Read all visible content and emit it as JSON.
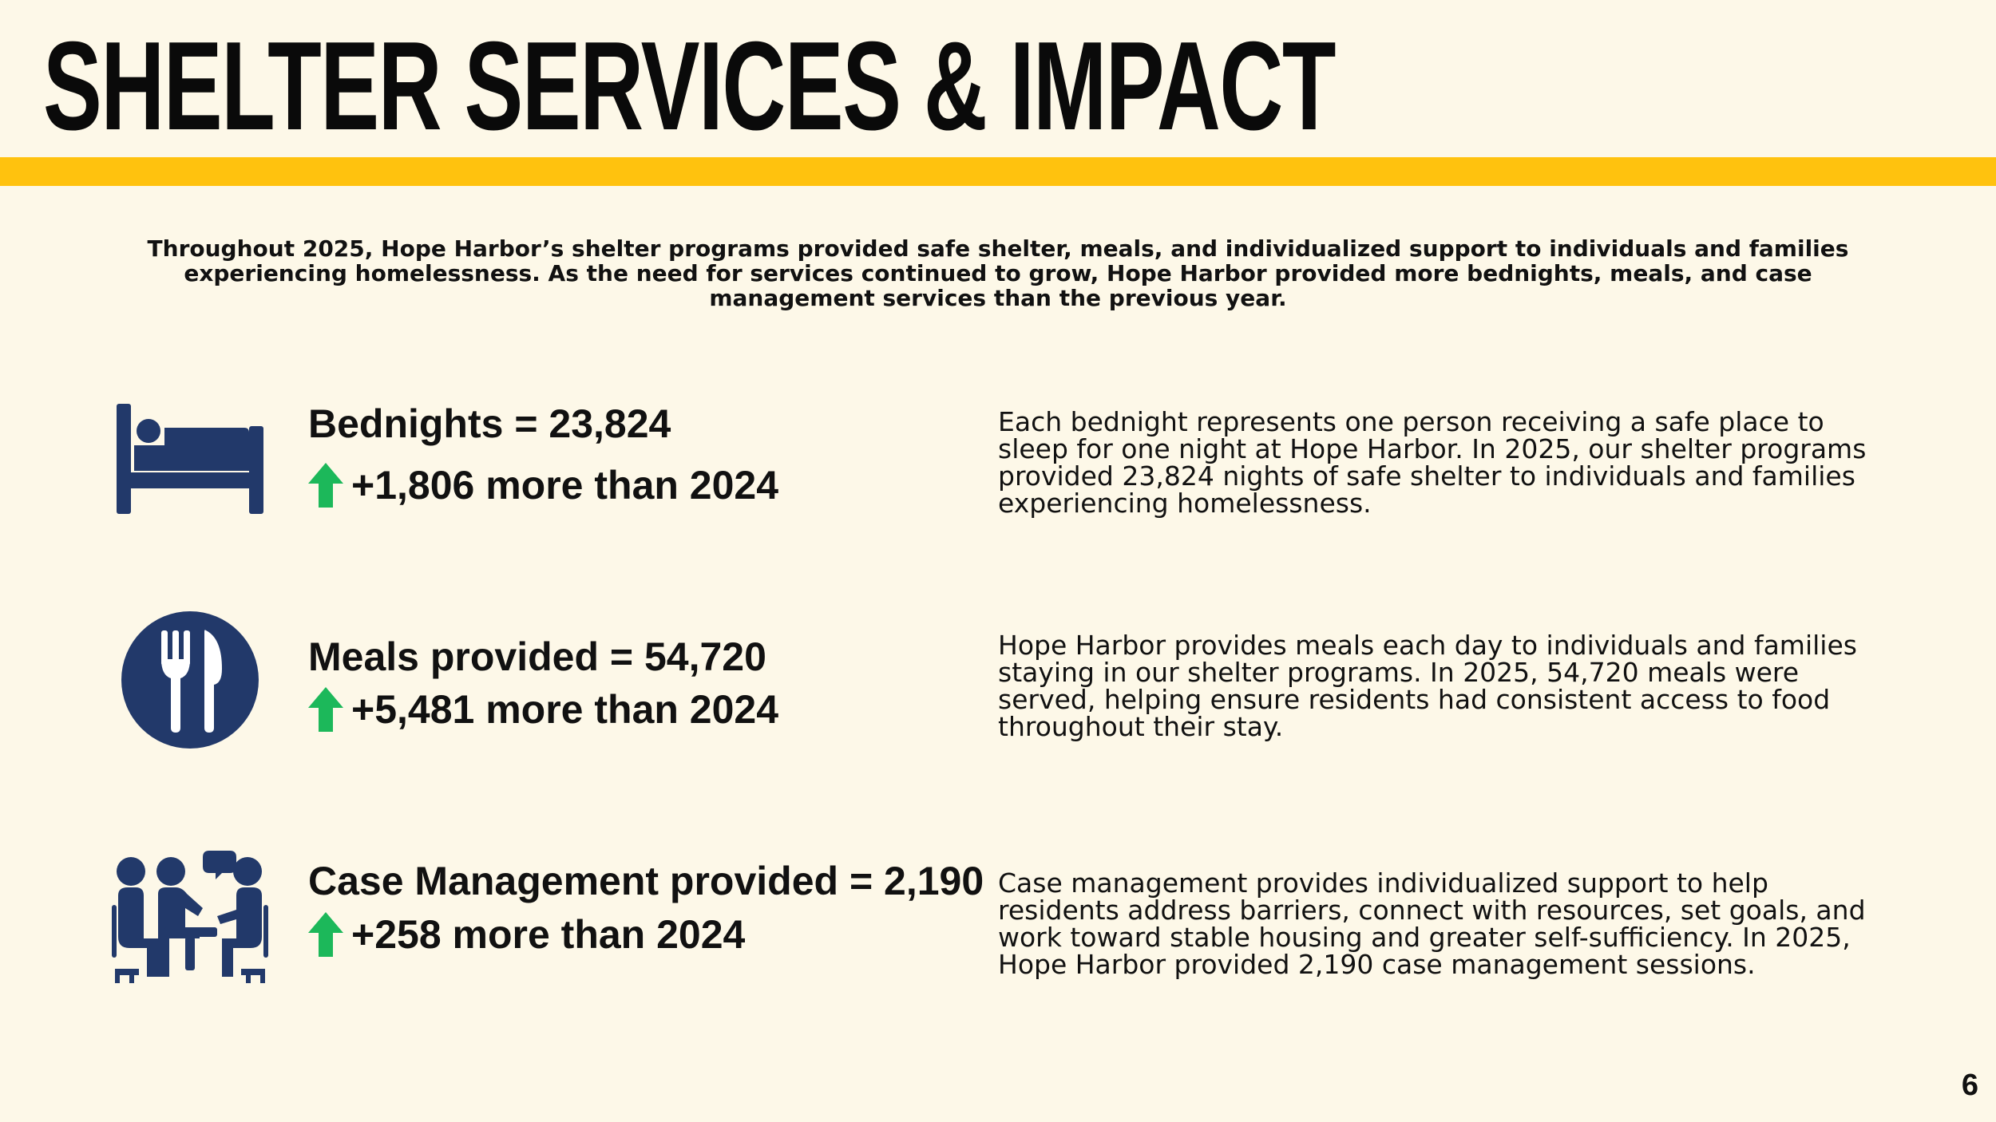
{
  "title": "SHELTER SERVICES & IMPACT",
  "intro": "Throughout 2025, Hope Harbor’s shelter programs provided safe shelter, meals, and individualized support to individuals and families experiencing homelessness. As the need for services continued to grow, Hope Harbor provided more bednights, meals, and case management services than the previous year.",
  "colors": {
    "background": "#fdf8e8",
    "accent_bar": "#ffc20e",
    "icon": "#22396a",
    "arrow": "#1cb85a"
  },
  "stats": [
    {
      "icon": "bed-icon",
      "title": "Bednights = 23,824",
      "change": "+1,806 more than 2024",
      "description": "Each bednight represents one person receiving a safe place to sleep for one night at Hope Harbor. In 2025, our shelter programs provided 23,824 nights of safe shelter to individuals and families experiencing homelessness."
    },
    {
      "icon": "fork-knife-icon",
      "title": "Meals provided = 54,720",
      "change": "+5,481 more than 2024",
      "description": "Hope Harbor provides meals each day to individuals and families staying in our shelter programs. In 2025, 54,720 meals were served, helping ensure residents had consistent access to food throughout their stay."
    },
    {
      "icon": "meeting-icon",
      "title": "Case Management provided = 2,190",
      "change": "+258 more than 2024",
      "description": "Case management provides individualized support to help residents address barriers, connect with resources, set goals, and work toward stable housing and greater self-sufficiency. In 2025, Hope Harbor provided 2,190 case management sessions."
    }
  ],
  "page_number": "6"
}
